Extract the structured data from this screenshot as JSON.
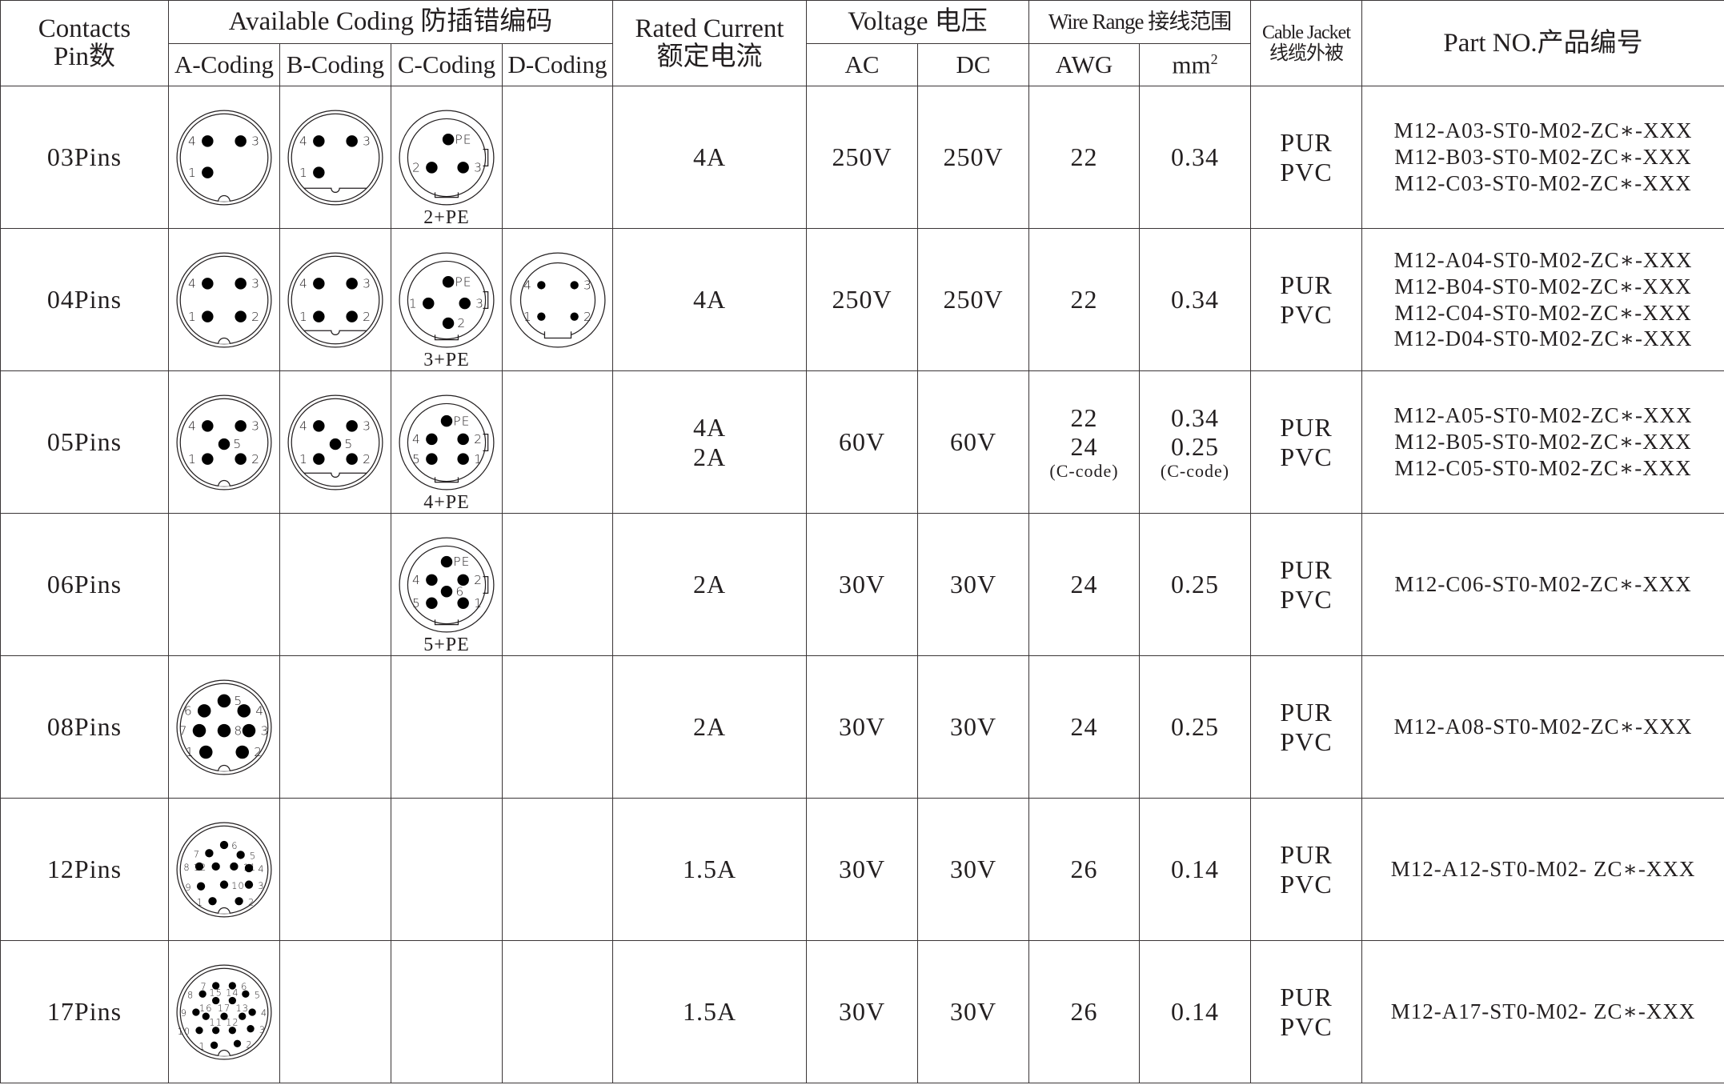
{
  "header": {
    "contacts": [
      "Contacts",
      "Pin数"
    ],
    "coding": "Available Coding 防插错编码",
    "coding_cols": [
      "A-Coding",
      "B-Coding",
      "C-Coding",
      "D-Coding"
    ],
    "current": [
      "Rated Current",
      "额定电流"
    ],
    "voltage": "Voltage 电压",
    "voltage_cols": [
      "AC",
      "DC"
    ],
    "wire": "Wire  Range 接线范围",
    "wire_cols": [
      "AWG",
      "mm"
    ],
    "wire_sup": "2",
    "jacket": [
      "Cable Jacket",
      "线缆外被"
    ],
    "part": "Part NO.产品编号"
  },
  "rows": [
    {
      "contacts": "03Pins",
      "coding": {
        "A": {
          "key": "A3",
          "pins": [
            "4",
            "3",
            "1"
          ]
        },
        "B": {
          "key": "B3",
          "pins": [
            "4",
            "3",
            "1"
          ]
        },
        "C": {
          "key": "C3",
          "pins": [
            "PE",
            "2",
            "3"
          ],
          "label": "2+PE"
        },
        "D": null
      },
      "current": [
        "4A"
      ],
      "ac": "250V",
      "dc": "250V",
      "awg": [
        "22"
      ],
      "mm2": [
        "0.34"
      ],
      "jacket": [
        "PUR",
        "PVC"
      ],
      "parts": [
        "M12-A03-ST0-M02-ZC∗-XXX",
        "M12-B03-ST0-M02-ZC∗-XXX",
        "M12-C03-ST0-M02-ZC∗-XXX"
      ]
    },
    {
      "contacts": "04Pins",
      "coding": {
        "A": {
          "key": "A4",
          "pins": [
            "4",
            "3",
            "1",
            "2"
          ]
        },
        "B": {
          "key": "B4",
          "pins": [
            "4",
            "3",
            "1",
            "2"
          ]
        },
        "C": {
          "key": "C4",
          "pins": [
            "PE",
            "1",
            "3",
            "2"
          ],
          "label": "3+PE"
        },
        "D": {
          "key": "D4",
          "pins": [
            "4",
            "3",
            "1",
            "2"
          ]
        }
      },
      "current": [
        "4A"
      ],
      "ac": "250V",
      "dc": "250V",
      "awg": [
        "22"
      ],
      "mm2": [
        "0.34"
      ],
      "jacket": [
        "PUR",
        "PVC"
      ],
      "parts": [
        "M12-A04-ST0-M02-ZC∗-XXX",
        "M12-B04-ST0-M02-ZC∗-XXX",
        "M12-C04-ST0-M02-ZC∗-XXX",
        "M12-D04-ST0-M02-ZC∗-XXX"
      ]
    },
    {
      "contacts": "05Pins",
      "coding": {
        "A": {
          "key": "A5",
          "pins": [
            "4",
            "3",
            "1",
            "2",
            "5"
          ]
        },
        "B": {
          "key": "B5",
          "pins": [
            "4",
            "3",
            "1",
            "2",
            "5"
          ]
        },
        "C": {
          "key": "C5",
          "pins": [
            "PE",
            "4",
            "2",
            "5",
            "1"
          ],
          "label": "4+PE"
        },
        "D": null
      },
      "current": [
        "4A",
        "2A"
      ],
      "ac": "60V",
      "dc": "60V",
      "awg": [
        "22",
        "24"
      ],
      "awg_note": "(C-code)",
      "mm2": [
        "0.34",
        "0.25"
      ],
      "mm2_note": "(C-code)",
      "jacket": [
        "PUR",
        "PVC"
      ],
      "parts": [
        "M12-A05-ST0-M02-ZC∗-XXX",
        "M12-B05-ST0-M02-ZC∗-XXX",
        "M12-C05-ST0-M02-ZC∗-XXX"
      ]
    },
    {
      "contacts": "06Pins",
      "coding": {
        "A": null,
        "B": null,
        "C": {
          "key": "C6",
          "pins": [
            "PE",
            "4",
            "2",
            "5",
            "1",
            "6"
          ],
          "label": "5+PE"
        },
        "D": null
      },
      "current": [
        "2A"
      ],
      "ac": "30V",
      "dc": "30V",
      "awg": [
        "24"
      ],
      "mm2": [
        "0.25"
      ],
      "jacket": [
        "PUR",
        "PVC"
      ],
      "parts": [
        "M12-C06-ST0-M02-ZC∗-XXX"
      ]
    },
    {
      "contacts": "08Pins",
      "coding": {
        "A": {
          "key": "A8",
          "pins": [
            "5",
            "6",
            "4",
            "7",
            "8",
            "3",
            "1",
            "2"
          ]
        },
        "B": null,
        "C": null,
        "D": null
      },
      "current": [
        "2A"
      ],
      "ac": "30V",
      "dc": "30V",
      "awg": [
        "24"
      ],
      "mm2": [
        "0.25"
      ],
      "jacket": [
        "PUR",
        "PVC"
      ],
      "parts": [
        "M12-A08-ST0-M02-ZC∗-XXX"
      ]
    },
    {
      "contacts": "12Pins",
      "coding": {
        "A": {
          "key": "A12",
          "pins": [
            "6",
            "7",
            "5",
            "8",
            "12",
            "11",
            "4",
            "9",
            "10",
            "3",
            "1",
            "2"
          ]
        },
        "B": null,
        "C": null,
        "D": null
      },
      "current": [
        "1.5A"
      ],
      "ac": "30V",
      "dc": "30V",
      "awg": [
        "26"
      ],
      "mm2": [
        "0.14"
      ],
      "jacket": [
        "PUR",
        "PVC"
      ],
      "parts": [
        "M12-A12-ST0-M02- ZC∗-XXX"
      ]
    },
    {
      "contacts": "17Pins",
      "coding": {
        "A": {
          "key": "A17",
          "pins": [
            "1",
            "2",
            "3",
            "4",
            "5",
            "6",
            "7",
            "8",
            "9",
            "10",
            "11",
            "12",
            "13",
            "14",
            "15",
            "16",
            "17"
          ]
        },
        "B": null,
        "C": null,
        "D": null
      },
      "current": [
        "1.5A"
      ],
      "ac": "30V",
      "dc": "30V",
      "awg": [
        "26"
      ],
      "mm2": [
        "0.14"
      ],
      "jacket": [
        "PUR",
        "PVC"
      ],
      "parts": [
        "M12-A17-ST0-M02- ZC∗-XXX"
      ]
    }
  ]
}
